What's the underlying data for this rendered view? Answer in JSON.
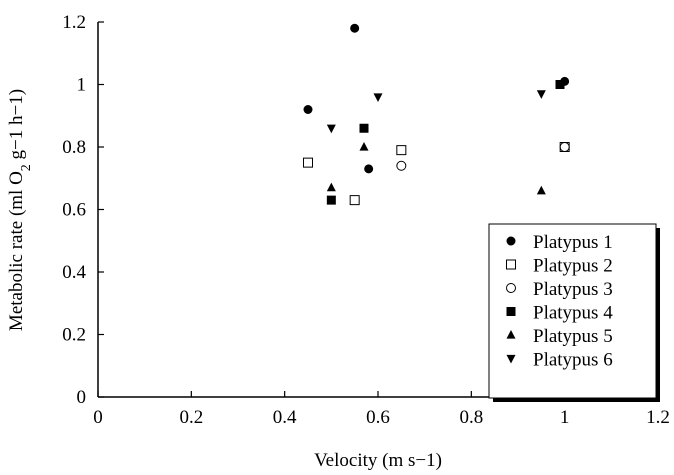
{
  "chart_data": {
    "type": "scatter",
    "title": "",
    "xlabel": "Velocity (m s−1)",
    "ylabel": "Metabolic rate (ml O2 g−1 h−1)",
    "xlim": [
      0,
      1.2
    ],
    "ylim": [
      0,
      1.2
    ],
    "x_ticks": [
      "0",
      "0.2",
      "0.4",
      "0.6",
      "0.8",
      "1",
      "1.2"
    ],
    "y_ticks": [
      "0",
      "0.2",
      "0.4",
      "0.6",
      "0.8",
      "1",
      "1.2"
    ],
    "grid": false,
    "legend_position": "bottom-right",
    "series": [
      {
        "name": "Platypus 1",
        "marker": "filled-circle",
        "points": [
          [
            0.45,
            0.92
          ],
          [
            0.55,
            1.18
          ],
          [
            0.58,
            0.73
          ],
          [
            1.0,
            1.01
          ]
        ]
      },
      {
        "name": "Platypus 2",
        "marker": "open-square",
        "points": [
          [
            0.45,
            0.75
          ],
          [
            0.55,
            0.63
          ],
          [
            0.65,
            0.79
          ],
          [
            1.0,
            0.8
          ]
        ]
      },
      {
        "name": "Platypus 3",
        "marker": "open-circle",
        "points": [
          [
            0.65,
            0.74
          ],
          [
            1.0,
            0.8
          ]
        ]
      },
      {
        "name": "Platypus 4",
        "marker": "filled-square",
        "points": [
          [
            0.5,
            0.63
          ],
          [
            0.57,
            0.86
          ],
          [
            0.99,
            1.0
          ]
        ]
      },
      {
        "name": "Platypus 5",
        "marker": "filled-triangle-up",
        "points": [
          [
            0.5,
            0.67
          ],
          [
            0.57,
            0.8
          ],
          [
            0.95,
            0.66
          ]
        ]
      },
      {
        "name": "Platypus 6",
        "marker": "filled-triangle-down",
        "points": [
          [
            0.5,
            0.86
          ],
          [
            0.6,
            0.96
          ],
          [
            0.95,
            0.97
          ]
        ]
      }
    ]
  }
}
